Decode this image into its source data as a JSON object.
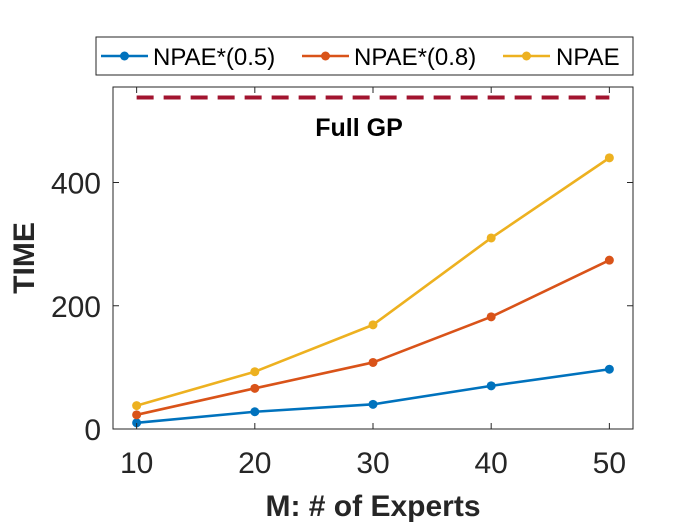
{
  "chart_data": {
    "type": "line",
    "title": "",
    "xlabel": "M: # of Experts",
    "ylabel": "TIME",
    "x": [
      10,
      20,
      30,
      40,
      50
    ],
    "xlim": [
      8,
      52
    ],
    "ylim": [
      0,
      555
    ],
    "xticks": [
      10,
      20,
      30,
      40,
      50
    ],
    "yticks": [
      0,
      200,
      400
    ],
    "grid": false,
    "legend_position": "top, outside, horizontal",
    "series": [
      {
        "name": "NPAE*(0.5)",
        "values": [
          10,
          28,
          40,
          70,
          97
        ],
        "color": "#0072BD"
      },
      {
        "name": "NPAE*(0.8)",
        "values": [
          23,
          66,
          108,
          182,
          274
        ],
        "color": "#D95319"
      },
      {
        "name": "NPAE",
        "values": [
          38,
          93,
          169,
          310,
          440
        ],
        "color": "#EDB120"
      }
    ],
    "reference_line": {
      "label": "Full GP",
      "value": 538,
      "color": "#A2142F",
      "style": "dashed"
    }
  }
}
